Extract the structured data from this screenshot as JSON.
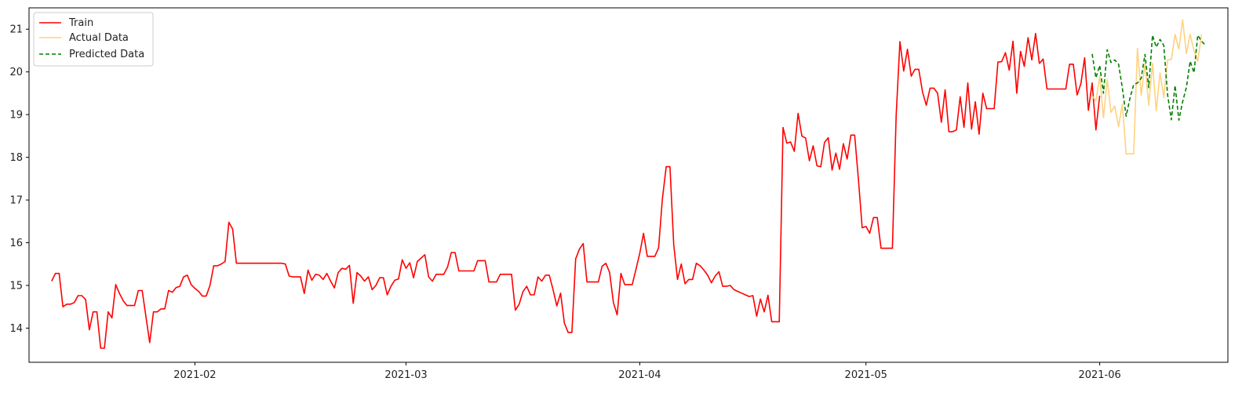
{
  "chart_data": {
    "type": "line",
    "title": "",
    "xlabel": "",
    "ylabel": "",
    "x_axis": "date",
    "xlim": [
      "2021-01-10",
      "2021-06-18"
    ],
    "ylim": [
      13.2,
      21.5
    ],
    "x_ticks": [
      "2021-02-01",
      "2021-03-01",
      "2021-04-01",
      "2021-05-01",
      "2021-06-01"
    ],
    "x_tick_labels": [
      "2021-02",
      "2021-03",
      "2021-04",
      "2021-05",
      "2021-06"
    ],
    "y_ticks": [
      14,
      15,
      16,
      17,
      18,
      19,
      20,
      21
    ],
    "y_tick_labels": [
      "14",
      "15",
      "16",
      "17",
      "18",
      "19",
      "20",
      "21"
    ],
    "grid": false,
    "legend": {
      "position": "top-left",
      "entries": [
        "Train",
        "Actual Data",
        "Predicted Data"
      ]
    },
    "series": [
      {
        "name": "Train",
        "color": "#ff0000",
        "style": "solid",
        "start": "2021-01-13",
        "step_days": 0.5,
        "values": [
          15.1,
          15.28,
          15.28,
          14.5,
          14.56,
          14.56,
          14.6,
          14.76,
          14.76,
          14.67,
          13.96,
          14.38,
          14.38,
          13.53,
          13.53,
          14.38,
          14.24,
          15.02,
          14.81,
          14.64,
          14.53,
          14.53,
          14.53,
          14.88,
          14.88,
          14.27,
          13.66,
          14.38,
          14.38,
          14.45,
          14.45,
          14.88,
          14.84,
          14.95,
          14.98,
          15.2,
          15.24,
          15.02,
          14.93,
          14.86,
          14.75,
          14.75,
          15.0,
          15.46,
          15.46,
          15.5,
          15.56,
          16.48,
          16.32,
          15.52,
          15.52,
          15.52,
          15.52,
          15.52,
          15.52,
          15.52,
          15.52,
          15.52,
          15.52,
          15.52,
          15.52,
          15.52,
          15.5,
          15.22,
          15.2,
          15.2,
          15.2,
          14.81,
          15.36,
          15.12,
          15.26,
          15.24,
          15.14,
          15.28,
          15.1,
          14.94,
          15.3,
          15.4,
          15.38,
          15.47,
          14.58,
          15.3,
          15.22,
          15.1,
          15.2,
          14.9,
          15.0,
          15.18,
          15.18,
          14.78,
          14.98,
          15.12,
          15.15,
          15.6,
          15.4,
          15.53,
          15.18,
          15.56,
          15.64,
          15.72,
          15.2,
          15.1,
          15.26,
          15.26,
          15.26,
          15.43,
          15.77,
          15.77,
          15.34,
          15.34,
          15.34,
          15.34,
          15.34,
          15.58,
          15.58,
          15.58,
          15.08,
          15.08,
          15.08,
          15.26,
          15.26,
          15.26,
          15.26,
          14.42,
          14.56,
          14.85,
          14.98,
          14.78,
          14.78,
          15.2,
          15.1,
          15.24,
          15.24,
          14.9,
          14.52,
          14.82,
          14.12,
          13.9,
          13.9,
          15.62,
          15.85,
          15.98,
          15.08,
          15.08,
          15.08,
          15.08,
          15.45,
          15.52,
          15.3,
          14.6,
          14.31,
          15.28,
          15.02,
          15.02,
          15.02,
          15.38,
          15.75,
          16.22,
          15.68,
          15.68,
          15.68,
          15.88,
          17.02,
          17.78,
          17.78,
          15.95,
          15.14,
          15.5,
          15.04,
          15.14,
          15.14,
          15.52,
          15.46,
          15.36,
          15.24,
          15.06,
          15.22,
          15.32,
          14.98,
          14.98,
          15.0,
          14.9,
          14.86,
          14.82,
          14.78,
          14.74,
          14.76,
          14.28,
          14.68,
          14.38,
          14.77,
          14.15,
          14.15,
          14.15,
          18.7,
          18.33,
          18.36,
          18.14,
          19.03,
          18.5,
          18.45,
          17.92,
          18.27,
          17.8,
          17.78,
          18.35,
          18.46,
          17.7,
          18.1,
          17.72,
          18.32,
          17.96,
          18.52,
          18.52,
          17.48,
          16.35,
          16.38,
          16.22,
          16.59,
          16.59,
          15.87,
          15.87,
          15.87,
          15.87,
          18.98,
          20.71,
          20.02,
          20.53,
          19.9,
          20.06,
          20.06,
          19.53,
          19.22,
          19.62,
          19.62,
          19.5,
          18.82,
          19.58,
          18.6,
          18.6,
          18.64,
          19.42,
          18.7,
          19.74,
          18.66,
          19.3,
          18.54,
          19.5,
          19.14,
          19.14,
          19.14,
          20.23,
          20.24,
          20.45,
          20.04,
          20.72,
          19.5,
          20.48,
          20.13,
          20.8,
          20.28,
          20.9,
          20.2,
          20.3,
          19.6,
          19.6,
          19.6,
          19.6,
          19.6,
          19.6,
          20.18,
          20.18,
          19.46,
          19.72,
          20.33,
          19.1,
          19.74,
          18.64,
          19.44
        ]
      },
      {
        "name": "Actual Data",
        "color": "#ffd280",
        "style": "solid",
        "start": "2021-05-31",
        "step_days": 0.5,
        "values": [
          19.44,
          19.32,
          19.9,
          18.93,
          19.82,
          19.05,
          19.2,
          18.72,
          19.25,
          18.08,
          18.08,
          18.08,
          20.55,
          19.45,
          20.2,
          19.22,
          20.2,
          19.09,
          19.98,
          19.4,
          20.28,
          20.29,
          20.88,
          20.53,
          21.22,
          20.43,
          20.88,
          20.5,
          20.25,
          20.88
        ]
      },
      {
        "name": "Predicted Data",
        "color": "#008000",
        "style": "dashed",
        "start": "2021-05-31",
        "step_days": 0.5,
        "values": [
          20.42,
          19.86,
          20.15,
          19.5,
          20.52,
          20.22,
          20.28,
          20.18,
          19.62,
          18.96,
          19.38,
          19.7,
          19.74,
          19.85,
          20.41,
          19.63,
          20.86,
          20.58,
          20.76,
          20.62,
          19.47,
          18.88,
          19.68,
          18.87,
          19.3,
          19.64,
          20.25,
          19.98,
          20.86,
          20.72,
          20.63
        ]
      }
    ]
  }
}
